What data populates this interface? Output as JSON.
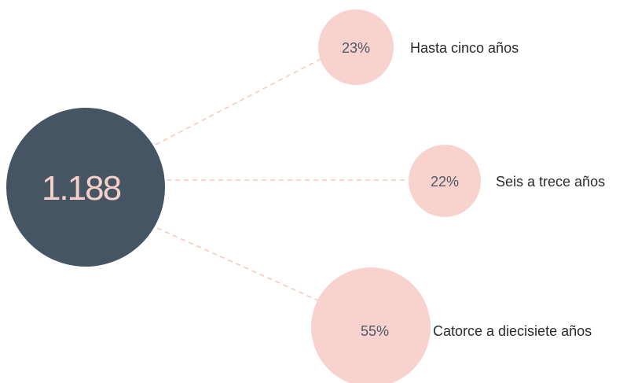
{
  "colors": {
    "center_fill": "#455563",
    "center_text": "#f6cfc8",
    "bubble_fill": "#f8d2cd",
    "bubble_text": "#4e5965",
    "label_text": "#2b2b2b",
    "connector": "#f5c7bb"
  },
  "center": {
    "value": "1.188"
  },
  "chart_data": {
    "type": "bubble-breakdown",
    "total": 1188,
    "categories": [
      "Hasta cinco años",
      "Seis a trece años",
      "Catorce a diecisiete años"
    ],
    "values": [
      23,
      22,
      55
    ],
    "unit": "%"
  },
  "bubbles": [
    {
      "pct": "23%",
      "label": "Hasta cinco años"
    },
    {
      "pct": "22%",
      "label": "Seis a trece años"
    },
    {
      "pct": "55%",
      "label": "Catorce a diecisiete años"
    }
  ]
}
